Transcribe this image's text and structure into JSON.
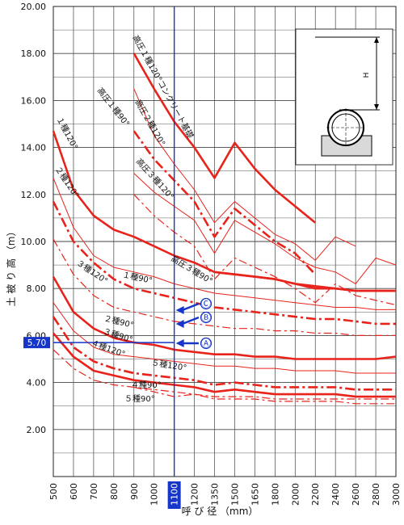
{
  "chart_data": {
    "type": "line",
    "xlabel": "呼 び 径 （mm）",
    "ylabel": "土 被 り 高 （m）",
    "categories": [
      "500",
      "600",
      "700",
      "800",
      "900",
      "1000",
      "1100",
      "1200",
      "1350",
      "1500",
      "1650",
      "1800",
      "2000",
      "2200",
      "2400",
      "2600",
      "2800",
      "3000"
    ],
    "ylim": [
      0,
      20
    ],
    "yticks": [
      "2.00",
      "4.00",
      "6.00",
      "8.00",
      "10.00",
      "12.00",
      "14.00",
      "16.00",
      "18.00",
      "20.00"
    ],
    "grid": true,
    "colors": {
      "accent": "#e8231b",
      "marker": "#1636c9",
      "grid": "#444444"
    },
    "highlight": {
      "x": "1100",
      "y": "5.70"
    },
    "series": [
      {
        "name": "高圧１種120°コンクリート基礎",
        "style": "solid-thick",
        "values": [
          null,
          null,
          null,
          null,
          18.0,
          16.5,
          15.1,
          14.0,
          12.7,
          14.2,
          13.1,
          12.2,
          11.5,
          10.8,
          null,
          null,
          null,
          null
        ]
      },
      {
        "name": "高圧１種90°",
        "style": "solid-thin",
        "values": [
          null,
          null,
          null,
          null,
          16.5,
          14.5,
          13.3,
          12.2,
          10.8,
          11.7,
          11.0,
          10.3,
          9.9,
          9.2,
          10.2,
          9.8,
          null,
          null
        ]
      },
      {
        "name": "高圧２種120°",
        "style": "dashdot-thick",
        "values": [
          null,
          null,
          null,
          null,
          14.7,
          13.5,
          12.6,
          11.7,
          10.2,
          11.4,
          10.7,
          10.0,
          9.5,
          8.6,
          null,
          null,
          null,
          null
        ]
      },
      {
        "name": "高圧３種120°",
        "style": "solid-thin",
        "values": [
          null,
          null,
          null,
          null,
          12.9,
          12.1,
          11.5,
          10.9,
          9.5,
          10.9,
          10.4,
          9.9,
          9.3,
          8.9,
          8.7,
          8.2,
          9.3,
          9.0
        ]
      },
      {
        "name": "",
        "style": "dashdot-thin",
        "values": [
          null,
          null,
          null,
          null,
          12.0,
          11.1,
          10.4,
          9.8,
          8.4,
          9.3,
          8.9,
          8.5,
          8.0,
          7.4,
          8.2,
          7.7,
          7.5,
          7.3
        ]
      },
      {
        "name": "高圧３種90°",
        "style": "solid-thick",
        "values": [
          null,
          null,
          null,
          null,
          null,
          null,
          null,
          null,
          8.7,
          8.6,
          8.5,
          8.4,
          8.2,
          8.1,
          8.0,
          7.9,
          7.9,
          7.9
        ]
      },
      {
        "name": "１種120°",
        "style": "solid-thick",
        "values": [
          14.7,
          12.2,
          11.1,
          10.5,
          10.2,
          9.8,
          9.4,
          9.1,
          8.7,
          8.6,
          8.5,
          8.4,
          8.2,
          8.0,
          8.0,
          7.9,
          7.9,
          7.9
        ]
      },
      {
        "name": "２種120°",
        "style": "solid-thin",
        "values": [
          12.7,
          10.6,
          9.4,
          8.9,
          8.7,
          8.5,
          8.2,
          8.0,
          7.8,
          7.7,
          7.6,
          7.5,
          7.4,
          7.3,
          7.2,
          7.2,
          7.1,
          7.1
        ]
      },
      {
        "name": "１種90°",
        "style": "dashdot-thick",
        "values": [
          11.7,
          10.0,
          9.1,
          8.4,
          8.0,
          7.8,
          7.6,
          7.4,
          7.2,
          7.1,
          7.0,
          6.9,
          6.8,
          6.7,
          6.7,
          6.6,
          6.5,
          6.5
        ]
      },
      {
        "name": "３種120°",
        "style": "dashdot-thin",
        "values": [
          10.1,
          8.6,
          7.7,
          7.2,
          7.0,
          6.8,
          6.6,
          6.5,
          6.4,
          6.3,
          6.3,
          6.2,
          6.2,
          6.1,
          6.1,
          6.0,
          6.0,
          6.0
        ]
      },
      {
        "name": "２種90°",
        "style": "solid-thick",
        "values": [
          8.5,
          7.0,
          6.3,
          5.9,
          5.7,
          5.6,
          5.4,
          5.3,
          5.2,
          5.2,
          5.1,
          5.1,
          5.0,
          5.0,
          5.0,
          5.0,
          5.0,
          5.1
        ]
      },
      {
        "name": "３種90°",
        "style": "solid-thin",
        "values": [
          7.4,
          6.2,
          5.5,
          5.2,
          5.1,
          5.0,
          4.9,
          4.8,
          4.7,
          4.7,
          4.6,
          4.6,
          4.5,
          4.5,
          4.5,
          4.4,
          4.4,
          4.4
        ]
      },
      {
        "name": "４種120°",
        "style": "dashdot-thick",
        "values": [
          6.8,
          5.5,
          4.9,
          4.6,
          4.4,
          4.3,
          4.2,
          4.1,
          3.9,
          4.0,
          3.9,
          3.8,
          3.8,
          3.8,
          3.8,
          3.7,
          3.7,
          3.7
        ]
      },
      {
        "name": "５種120°",
        "style": "solid-thick",
        "values": [
          6.1,
          5.1,
          4.5,
          4.3,
          4.1,
          4.0,
          3.9,
          3.8,
          3.6,
          3.7,
          3.6,
          3.5,
          3.5,
          3.5,
          3.5,
          3.4,
          3.4,
          3.4
        ]
      },
      {
        "name": "４種90°",
        "style": "dashdot-thin",
        "values": [
          5.4,
          4.6,
          4.1,
          3.9,
          3.8,
          3.7,
          3.6,
          3.5,
          3.4,
          3.4,
          3.4,
          3.3,
          3.3,
          3.3,
          3.3,
          3.3,
          3.3,
          3.3
        ]
      },
      {
        "name": "５種90°",
        "style": "dashdot-thin",
        "values": [
          null,
          null,
          null,
          null,
          3.8,
          3.6,
          3.4,
          3.5,
          3.3,
          3.3,
          3.3,
          3.2,
          3.2,
          3.2,
          3.2,
          3.1,
          3.1,
          3.1
        ]
      }
    ],
    "arrows": [
      "Ⓒ",
      "Ⓑ",
      "Ⓐ"
    ],
    "inset": {
      "label": "H"
    }
  }
}
